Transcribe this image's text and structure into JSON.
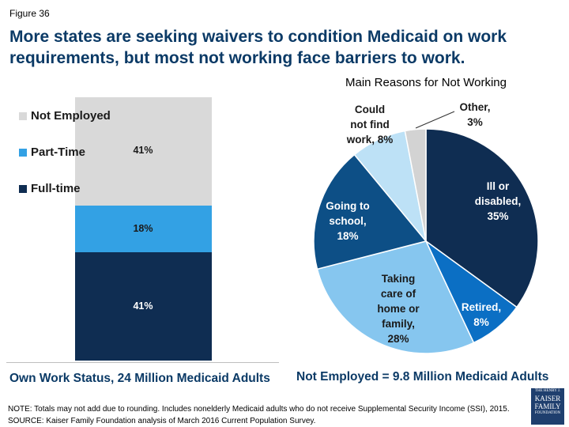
{
  "figure_label": "Figure 36",
  "title": "More states are seeking waivers to condition Medicaid on work requirements, but most not working face barriers to work.",
  "note": "NOTE: Totals may not add due to rounding. Includes nonelderly Medicaid adults who do not receive Supplemental Security Income (SSI), 2015. SOURCE: Kaiser Family Foundation analysis of March 2016 Current Population Survey.",
  "logo_text": "THE HENRY J. KAISER FAMILY FOUNDATION",
  "chart_data": [
    {
      "type": "bar",
      "stacked": true,
      "xlabel": "Own Work Status, 24 Million Medicaid Adults",
      "legend_position": "left",
      "series": [
        {
          "name": "Full-time",
          "value": 41,
          "label": "41%",
          "color": "#0f2d52"
        },
        {
          "name": "Part-Time",
          "value": 18,
          "label": "18%",
          "color": "#33a1e4"
        },
        {
          "name": "Not Employed",
          "value": 41,
          "label": "41%",
          "color": "#d9d9d9"
        }
      ]
    },
    {
      "type": "pie",
      "title": "Main Reasons for Not Working",
      "xlabel": "Not Employed = 9.8 Million Medicaid Adults",
      "slices": [
        {
          "name": "Ill or disabled",
          "value": 35,
          "label": "Ill or\ndisabled,\n35%",
          "color": "#0f2d52"
        },
        {
          "name": "Retired",
          "value": 8,
          "label": "Retired,\n8%",
          "color": "#0b6fc4"
        },
        {
          "name": "Taking care of home or family",
          "value": 28,
          "label": "Taking\ncare of\nhome or\nfamily,\n28%",
          "color": "#86c6ef"
        },
        {
          "name": "Going to school",
          "value": 18,
          "label": "Going to\nschool,\n18%",
          "color": "#0d4f86"
        },
        {
          "name": "Could not find work",
          "value": 8,
          "label": "Could\nnot find\nwork, 8%",
          "color": "#bde1f6"
        },
        {
          "name": "Other",
          "value": 3,
          "label": "Other,\n3%",
          "color": "#d3d3d3"
        }
      ]
    }
  ]
}
